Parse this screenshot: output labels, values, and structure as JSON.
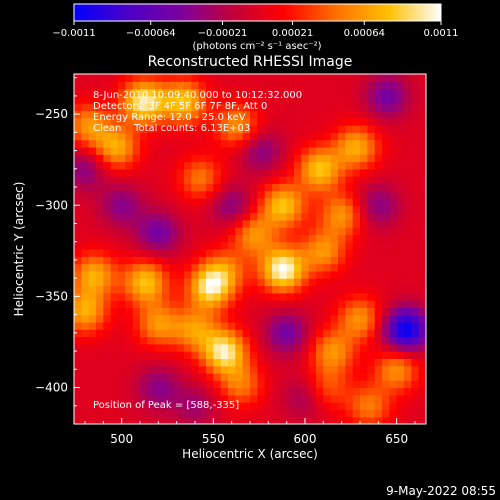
{
  "chart_data": {
    "type": "heatmap",
    "title": "Reconstructed RHESSI Image",
    "xlabel": "Heliocentric X (arcsec)",
    "ylabel": "Heliocentric Y (arcsec)",
    "xlim": [
      474,
      666
    ],
    "ylim": [
      -420,
      -228
    ],
    "x_ticks": [
      {
        "value": 500,
        "label": "500"
      },
      {
        "value": 550,
        "label": "550"
      },
      {
        "value": 600,
        "label": "600"
      },
      {
        "value": 650,
        "label": "650"
      }
    ],
    "y_ticks": [
      {
        "value": -250,
        "label": "−250"
      },
      {
        "value": -300,
        "label": "−300"
      },
      {
        "value": -350,
        "label": "−350"
      },
      {
        "value": -400,
        "label": "−400"
      }
    ],
    "colorbar": {
      "range": [
        -0.0011,
        0.0011
      ],
      "ticks": [
        {
          "value": -0.0011,
          "label": "−0.0011"
        },
        {
          "value": -0.00064,
          "label": "−0.00064"
        },
        {
          "value": -0.00021,
          "label": "−0.00021"
        },
        {
          "value": 0.00021,
          "label": "0.00021"
        },
        {
          "value": 0.00064,
          "label": "0.00064"
        },
        {
          "value": 0.0011,
          "label": "0.0011"
        }
      ],
      "units_label": "(photons cm⁻² s⁻¹ asec⁻²)",
      "stops": [
        "#0000ff",
        "#4a00c8",
        "#7a00a0",
        "#c0003c",
        "#ff0000",
        "#ff7000",
        "#ffc000",
        "#ffffff"
      ]
    },
    "annotations": [
      "8-Jun-2010 10:09:40.000 to 10:12:32.000",
      "Detectors: 3F 4F 5F 6F 7F 8F, Att 0",
      "Energy Range: 12.0 - 25.0 keV",
      "Clean    Total counts: 6.13E+03"
    ],
    "peak_label": "Position of Peak = [588,-335]",
    "peak": {
      "x": 588,
      "y": -335
    },
    "blobs": [
      {
        "x": 512,
        "y": -243,
        "v": 0.001
      },
      {
        "x": 534,
        "y": -243,
        "v": 0.0008
      },
      {
        "x": 497,
        "y": -268,
        "v": 0.0007
      },
      {
        "x": 482,
        "y": -256,
        "v": 0.0006
      },
      {
        "x": 563,
        "y": -256,
        "v": 0.0006
      },
      {
        "x": 543,
        "y": -285,
        "v": 0.0005
      },
      {
        "x": 608,
        "y": -280,
        "v": 0.0008
      },
      {
        "x": 628,
        "y": -268,
        "v": 0.0007
      },
      {
        "x": 588,
        "y": -300,
        "v": 0.0008
      },
      {
        "x": 620,
        "y": -305,
        "v": 0.0006
      },
      {
        "x": 610,
        "y": -325,
        "v": 0.0006
      },
      {
        "x": 588,
        "y": -335,
        "v": 0.0011
      },
      {
        "x": 572,
        "y": -316,
        "v": 0.0006
      },
      {
        "x": 556,
        "y": -336,
        "v": 0.0005
      },
      {
        "x": 548,
        "y": -345,
        "v": 0.0009
      },
      {
        "x": 513,
        "y": -342,
        "v": 0.0008
      },
      {
        "x": 485,
        "y": -338,
        "v": 0.0007
      },
      {
        "x": 480,
        "y": -358,
        "v": 0.0007
      },
      {
        "x": 520,
        "y": -365,
        "v": 0.0006
      },
      {
        "x": 556,
        "y": -380,
        "v": 0.001
      },
      {
        "x": 540,
        "y": -368,
        "v": 0.0006
      },
      {
        "x": 565,
        "y": -398,
        "v": 0.0005
      },
      {
        "x": 630,
        "y": -362,
        "v": 0.0006
      },
      {
        "x": 615,
        "y": -380,
        "v": 0.0006
      },
      {
        "x": 650,
        "y": -390,
        "v": 0.0006
      },
      {
        "x": 612,
        "y": -400,
        "v": 0.0004
      },
      {
        "x": 635,
        "y": -410,
        "v": 0.0005
      },
      {
        "x": 500,
        "y": -300,
        "v": -0.0004
      },
      {
        "x": 576,
        "y": -270,
        "v": -0.0004
      },
      {
        "x": 520,
        "y": -315,
        "v": -0.0005
      },
      {
        "x": 560,
        "y": -300,
        "v": -0.0004
      },
      {
        "x": 600,
        "y": -405,
        "v": -0.0003
      },
      {
        "x": 655,
        "y": -368,
        "v": -0.0011
      },
      {
        "x": 640,
        "y": -300,
        "v": -0.0004
      },
      {
        "x": 645,
        "y": -240,
        "v": -0.0005
      },
      {
        "x": 520,
        "y": -400,
        "v": -0.0004
      },
      {
        "x": 590,
        "y": -370,
        "v": -0.0005
      },
      {
        "x": 480,
        "y": -280,
        "v": -0.0004
      },
      {
        "x": 540,
        "y": -410,
        "v": -0.0003
      }
    ]
  },
  "footer": {
    "date": "9-May-2022 08:55"
  }
}
